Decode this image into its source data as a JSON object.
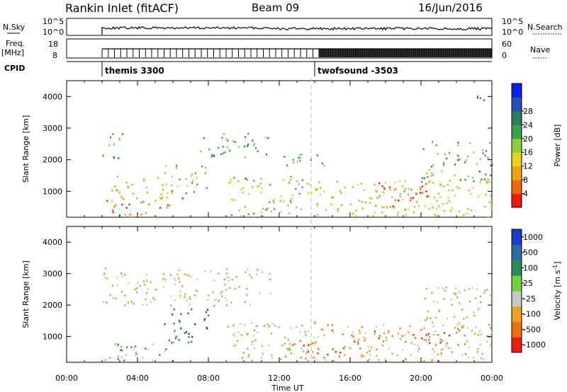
{
  "header": {
    "station": "Rankin Inlet (fitACF)",
    "beam": "Beam 09",
    "date": "16/Jun/2016"
  },
  "top_panels": {
    "nsky_label": "N.Sky",
    "nsky_ticks": [
      "10^5",
      "10^0"
    ],
    "nsky_right_ticks": [
      "10^5",
      "10^0"
    ],
    "nsearch_label": "N.Search",
    "freq_label_1": "Freq.",
    "freq_label_2": "[MHz]",
    "freq_ticks": [
      "18",
      "8"
    ],
    "nave_ticks": [
      "60",
      "0"
    ],
    "nave_label": "Nave",
    "cpid_label": "CPID",
    "cpid_items": [
      {
        "name": "themis 3300",
        "start_hour": 2.0
      },
      {
        "name": "twofsound -3503",
        "start_hour": 14.0
      }
    ]
  },
  "chart_data": [
    {
      "type": "heatmap",
      "name": "Power",
      "xlabel": "",
      "ylabel": "Slant Range [km]",
      "xlim": [
        0,
        24
      ],
      "ylim": [
        180,
        4500
      ],
      "y_ticks": [
        1000,
        2000,
        3000,
        4000
      ],
      "colorbar": {
        "label": "Power [dB]",
        "ticks": [
          "4",
          "8",
          "12",
          "16",
          "20",
          "24",
          "28"
        ],
        "colors": [
          "#0a1ef0",
          "#2a4fb8",
          "#2e7d5a",
          "#3fa04a",
          "#8fcf3a",
          "#e8d21a",
          "#f0a010",
          "#f06a0c",
          "#e81c0c"
        ]
      },
      "regions": [
        {
          "t": [
            2.0,
            3.2
          ],
          "r": [
            2000,
            2900
          ],
          "level": 3
        },
        {
          "t": [
            2.2,
            5.8
          ],
          "r": [
            200,
            800
          ],
          "level": 7
        },
        {
          "t": [
            2.5,
            5.5
          ],
          "r": [
            700,
            1500
          ],
          "level": 5
        },
        {
          "t": [
            5.5,
            8.0
          ],
          "r": [
            800,
            1900
          ],
          "level": 4
        },
        {
          "t": [
            7.5,
            11.5
          ],
          "r": [
            2100,
            2900
          ],
          "level": 3
        },
        {
          "t": [
            9.0,
            14.0
          ],
          "r": [
            200,
            1500
          ],
          "level": 4
        },
        {
          "t": [
            12.0,
            14.5
          ],
          "r": [
            1800,
            2300
          ],
          "level": 3
        },
        {
          "t": [
            14.0,
            24.0
          ],
          "r": [
            200,
            1400
          ],
          "level": 5
        },
        {
          "t": [
            17.5,
            20.5
          ],
          "r": [
            500,
            1300
          ],
          "level": 7
        },
        {
          "t": [
            20.0,
            24.0
          ],
          "r": [
            1300,
            2600
          ],
          "level": 3
        },
        {
          "t": [
            22.8,
            23.6
          ],
          "r": [
            3700,
            4100
          ],
          "level": 2
        }
      ]
    },
    {
      "type": "heatmap",
      "name": "Velocity",
      "xlabel": "Time UT",
      "ylabel": "Slant Range [km]",
      "xlim": [
        0,
        24
      ],
      "ylim": [
        180,
        4500
      ],
      "x_ticks": [
        "00:00",
        "04:00",
        "08:00",
        "12:00",
        "16:00",
        "20:00",
        "00:00"
      ],
      "y_ticks": [
        1000,
        2000,
        3000,
        4000
      ],
      "colorbar": {
        "label": "Velocity [m s",
        "label_sup": "-1",
        "label_end": "]",
        "ticks": [
          "1000",
          "500",
          "100",
          "25",
          "-25",
          "-100",
          "-500",
          "-1000"
        ],
        "colors": [
          "#1a3cc8",
          "#2e6aa8",
          "#2e8a5a",
          "#6fd040",
          "#c8c8c0",
          "#f0a020",
          "#f07010",
          "#e82010"
        ]
      },
      "regions": [
        {
          "t": [
            2.0,
            11.5
          ],
          "r": [
            2000,
            3200
          ],
          "level": 4
        },
        {
          "t": [
            2.0,
            6.0
          ],
          "r": [
            200,
            900
          ],
          "level": 3
        },
        {
          "t": [
            5.5,
            8.0
          ],
          "r": [
            800,
            1900
          ],
          "level": 1
        },
        {
          "t": [
            9.0,
            14.0
          ],
          "r": [
            200,
            1500
          ],
          "level": 4
        },
        {
          "t": [
            12.0,
            16.0
          ],
          "r": [
            300,
            900
          ],
          "level": 6
        },
        {
          "t": [
            14.0,
            24.0
          ],
          "r": [
            200,
            1400
          ],
          "level": 5
        },
        {
          "t": [
            16.0,
            22.0
          ],
          "r": [
            800,
            1300
          ],
          "level": 6
        },
        {
          "t": [
            20.0,
            24.0
          ],
          "r": [
            1300,
            2600
          ],
          "level": 4
        }
      ]
    }
  ]
}
